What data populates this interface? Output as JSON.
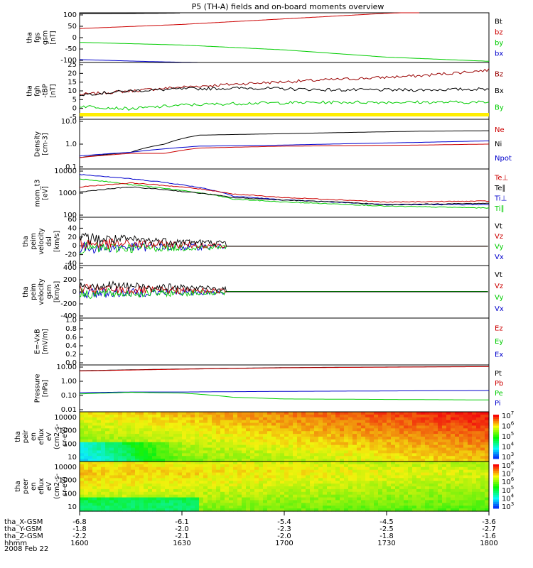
{
  "title": "P5 (TH-A) fields and on-board moments overview",
  "date_label": "2008 Feb 22",
  "chart_data": {
    "type": "line",
    "x_range": [
      "16:00",
      "18:00"
    ],
    "x_tick_labels": [
      "1600",
      "1630",
      "1700",
      "1730",
      "1800"
    ],
    "ephemeris": [
      {
        "label": "tha_X-GSM",
        "values": [
          "-6.8",
          "-6.1",
          "-5.4",
          "-4.5",
          "-3.6"
        ]
      },
      {
        "label": "tha_Y-GSM",
        "values": [
          "-1.8",
          "-2.0",
          "-2.3",
          "-2.5",
          "-2.7"
        ]
      },
      {
        "label": "tha_Z-GSM",
        "values": [
          "-2.2",
          "-2.1",
          "-2.0",
          "-1.8",
          "-1.6"
        ]
      },
      {
        "label": "hhmm",
        "values": [
          "1600",
          "1630",
          "1700",
          "1730",
          "1800"
        ]
      }
    ],
    "panels": [
      {
        "id": "fgs",
        "ylabel": [
          "tha",
          "fgs",
          "gsm",
          "[nT]"
        ],
        "ytick_labels": [
          "100",
          "50",
          "0",
          "-50",
          "-100"
        ],
        "ylim": [
          -100,
          105
        ],
        "legend": [
          {
            "name": "Bt",
            "color": "#000000"
          },
          {
            "name": "bz",
            "color": "#cc0000"
          },
          {
            "name": "by",
            "color": "#00cc00"
          },
          {
            "name": "bx",
            "color": "#0000cc"
          }
        ],
        "series": [
          {
            "name": "bz",
            "x": [
              0,
              30,
              60,
              90,
              100
            ],
            "y": [
              40,
              57,
              80,
              103,
              108
            ]
          },
          {
            "name": "by",
            "x": [
              0,
              30,
              60,
              90,
              120
            ],
            "y": [
              -17,
              -28,
              -48,
              -78,
              -95
            ]
          },
          {
            "name": "bx",
            "x": [
              0,
              10,
              20,
              30,
              40
            ],
            "y": [
              -88,
              -92,
              -96,
              -99,
              -101
            ]
          },
          {
            "name": "Bt",
            "x": [
              0,
              15,
              30
            ],
            "y": [
              101,
              102,
              104
            ]
          }
        ]
      },
      {
        "id": "fgh",
        "ylabel": [
          "tha",
          "fgh",
          "-tBP",
          "[nT]"
        ],
        "ytick_labels": [
          "25",
          "20",
          "15",
          "10",
          "5",
          "0",
          "-5"
        ],
        "ylim": [
          -5,
          25
        ],
        "legend": [
          {
            "name": "Bz",
            "color": "#990000"
          },
          {
            "name": "Bx",
            "color": "#000000"
          },
          {
            "name": "By",
            "color": "#00cc00"
          }
        ],
        "series": [
          {
            "name": "Bz",
            "x": [
              0,
              15,
              30,
              50,
              75,
              100,
              120
            ],
            "y": [
              8,
              10,
              12,
              14,
              16,
              18,
              21
            ]
          },
          {
            "name": "Bx",
            "x": [
              0,
              15,
              30,
              50,
              75,
              100,
              120
            ],
            "y": [
              8,
              10,
              11,
              11.5,
              10.5,
              10.5,
              11
            ]
          },
          {
            "name": "By",
            "x": [
              0,
              15,
              30,
              50,
              75,
              100,
              120
            ],
            "y": [
              2,
              0.5,
              2.5,
              3.5,
              4,
              4,
              4
            ]
          }
        ]
      },
      {
        "id": "density",
        "ylabel": [
          "Density",
          "[cm-3]"
        ],
        "log": true,
        "ytick_labels": [
          "10.0",
          "1.0",
          "0.1"
        ],
        "ylim": [
          0.1,
          12
        ],
        "legend": [
          {
            "name": "Ne",
            "color": "#cc0000"
          },
          {
            "name": "Ni",
            "color": "#000000"
          },
          {
            "name": "Npot",
            "color": "#0000cc"
          }
        ],
        "series": [
          {
            "name": "Ni",
            "x": [
              0,
              15,
              25,
              35,
              60,
              100,
              120
            ],
            "y": [
              0.3,
              0.5,
              1.1,
              2.6,
              3.0,
              3.8,
              4.0
            ]
          },
          {
            "name": "Ne",
            "x": [
              0,
              15,
              25,
              35,
              60,
              100,
              120
            ],
            "y": [
              0.3,
              0.45,
              0.45,
              0.75,
              0.9,
              1.0,
              1.1
            ]
          },
          {
            "name": "Npot",
            "x": [
              0,
              15,
              25,
              35,
              60,
              100,
              120
            ],
            "y": [
              0.35,
              0.5,
              0.7,
              0.9,
              1.0,
              1.3,
              1.5
            ]
          }
        ]
      },
      {
        "id": "mom_t",
        "ylabel": [
          "mom_t3",
          "[eV]"
        ],
        "log": true,
        "ytick_labels": [
          "10000",
          "1000",
          "100"
        ],
        "ylim": [
          100,
          12000
        ],
        "legend": [
          {
            "name": "Te⊥",
            "color": "#cc0000"
          },
          {
            "name": "Te∥",
            "color": "#000000"
          },
          {
            "name": "Ti⊥",
            "color": "#0000cc"
          },
          {
            "name": "Ti∥",
            "color": "#00cc00"
          }
        ],
        "series": [
          {
            "name": "Ti⊥",
            "x": [
              0,
              15,
              30,
              45,
              60,
              90,
              120
            ],
            "y": [
              7000,
              4500,
              2500,
              800,
              550,
              350,
              350
            ]
          },
          {
            "name": "Ti∥",
            "x": [
              0,
              15,
              30,
              45,
              60,
              90,
              120
            ],
            "y": [
              4500,
              2500,
              1400,
              600,
              450,
              300,
              250
            ]
          },
          {
            "name": "Te⊥",
            "x": [
              0,
              15,
              30,
              45,
              60,
              90,
              120
            ],
            "y": [
              2000,
              3000,
              2000,
              1000,
              700,
              450,
              500
            ]
          },
          {
            "name": "Te∥",
            "x": [
              0,
              15,
              30,
              45,
              60,
              90,
              120
            ],
            "y": [
              1200,
              2000,
              1300,
              700,
              550,
              350,
              400
            ]
          }
        ]
      },
      {
        "id": "peim_dsl",
        "ylabel": [
          "tha",
          "peim",
          "velocity",
          "dsl",
          "[km/s]"
        ],
        "ytick_labels": [
          "60",
          "40",
          "20",
          "0",
          "-20",
          "-40"
        ],
        "ylim": [
          -40,
          60
        ],
        "legend": [
          {
            "name": "Vt",
            "color": "#000000"
          },
          {
            "name": "Vz",
            "color": "#cc0000"
          },
          {
            "name": "Vy",
            "color": "#00cc00"
          },
          {
            "name": "Vx",
            "color": "#0000cc"
          }
        ],
        "noisy_until_min": 43
      },
      {
        "id": "peim_gsm",
        "ylabel": [
          "tha",
          "peim",
          "velocity",
          "gsm",
          "[km/s]"
        ],
        "ytick_labels": [
          "400",
          "200",
          "0",
          "-200",
          "-400"
        ],
        "ylim": [
          -400,
          400
        ],
        "legend": [
          {
            "name": "Vt",
            "color": "#000000"
          },
          {
            "name": "Vz",
            "color": "#cc0000"
          },
          {
            "name": "Vy",
            "color": "#00cc00"
          },
          {
            "name": "Vx",
            "color": "#0000cc"
          }
        ],
        "noisy_until_min": 43
      },
      {
        "id": "efield",
        "ylabel": [
          "E=-VxB",
          "[mV/m]"
        ],
        "ytick_labels": [
          "1.0",
          "0.8",
          "0.6",
          "0.4",
          "0.2",
          "0.0"
        ],
        "ylim": [
          0,
          1
        ],
        "legend": [
          {
            "name": "Ez",
            "color": "#cc0000"
          },
          {
            "name": "Ey",
            "color": "#00cc00"
          },
          {
            "name": "Ex",
            "color": "#0000cc"
          }
        ]
      },
      {
        "id": "pressure",
        "ylabel": [
          "Pressure",
          "[nPa]"
        ],
        "log": true,
        "ytick_labels": [
          "10.00",
          "1.00",
          "0.10",
          "0.01"
        ],
        "ylim": [
          0.01,
          12
        ],
        "legend": [
          {
            "name": "Pt",
            "color": "#000000"
          },
          {
            "name": "Pb",
            "color": "#cc0000"
          },
          {
            "name": "Pe",
            "color": "#00cc00"
          },
          {
            "name": "Pi",
            "color": "#0000cc"
          }
        ],
        "series": [
          {
            "name": "Pt",
            "x": [
              0,
              30,
              60,
              120
            ],
            "y": [
              5.0,
              6.5,
              8.0,
              9.5
            ]
          },
          {
            "name": "Pb",
            "x": [
              0,
              30,
              60,
              120
            ],
            "y": [
              4.8,
              6.3,
              7.8,
              9.3
            ]
          },
          {
            "name": "Pi",
            "x": [
              0,
              15,
              30,
              60,
              120
            ],
            "y": [
              0.18,
              0.2,
              0.2,
              0.22,
              0.25
            ]
          },
          {
            "name": "Pe",
            "x": [
              0,
              15,
              30,
              45,
              60,
              120
            ],
            "y": [
              0.15,
              0.19,
              0.17,
              0.09,
              0.07,
              0.06
            ]
          }
        ]
      },
      {
        "id": "peir_eflux",
        "type": "heatmap",
        "ylabel": [
          "tha",
          "peir",
          "en",
          "eflux",
          "eV",
          "(cm2-s-",
          "sr-eV)"
        ],
        "ytick_labels": [
          "10000",
          "1000",
          "100",
          "10"
        ],
        "colorbar_labels": [
          "10",
          "10",
          "10",
          "10",
          "10"
        ],
        "colorbar_exponents": [
          "7",
          "6",
          "5",
          "4",
          "3"
        ]
      },
      {
        "id": "peer_eflux",
        "type": "heatmap",
        "ylabel": [
          "tha",
          "peer",
          "en",
          "eflux",
          "eV",
          "(cm2-s-",
          "sr-eV)"
        ],
        "ytick_labels": [
          "10000",
          "1000",
          "100",
          "10"
        ],
        "colorbar_labels": [
          "10",
          "10",
          "10",
          "10",
          "10",
          "10"
        ],
        "colorbar_exponents": [
          "8",
          "7",
          "6",
          "5",
          "4",
          "3"
        ]
      }
    ]
  }
}
